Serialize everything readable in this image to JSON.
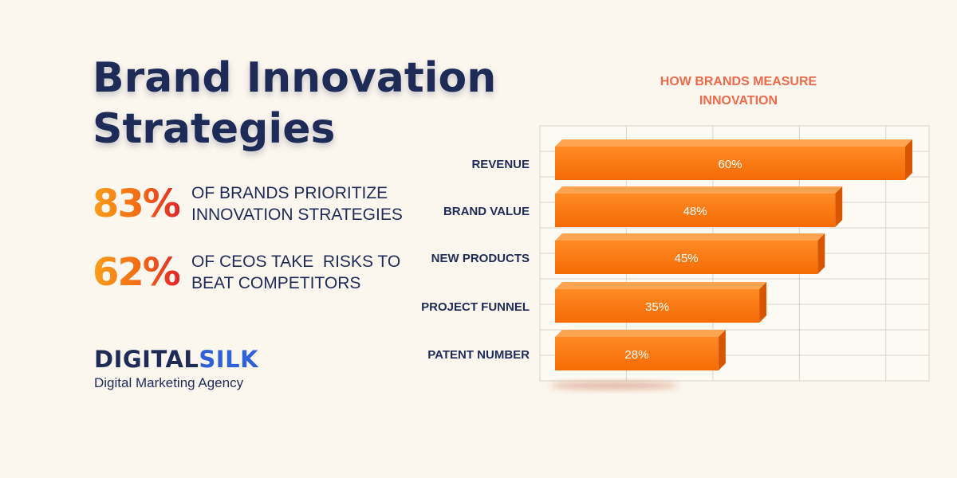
{
  "header": {
    "title_line_1": "Brand Innovation",
    "title_line_2": "Strategies"
  },
  "stats": [
    {
      "value": "83%",
      "text_line_1": "OF BRANDS PRIORITIZE",
      "text_line_2": "INNOVATION STRATEGIES"
    },
    {
      "value": "62%",
      "text_line_1": "OF CEOS TAKE  RISKS TO",
      "text_line_2": "BEAT COMPETITORS"
    }
  ],
  "brand": {
    "logo_part_1": "DIGITAL",
    "logo_part_2": "SILK",
    "tagline": "Digital Marketing Agency"
  },
  "colors": {
    "background": "#fbf6ee",
    "navy": "#1f2b57",
    "chart_title": "#ee6a4a",
    "bar": "#ff7a0f"
  },
  "chart_data": {
    "type": "bar",
    "orientation": "horizontal",
    "title_line_1": "HOW BRANDS MEASURE",
    "title_line_2": "INNOVATION",
    "categories": [
      "REVENUE",
      "BRAND VALUE",
      "NEW PRODUCTS",
      "PROJECT FUNNEL",
      "PATENT NUMBER"
    ],
    "values": [
      60,
      48,
      45,
      35,
      28
    ],
    "value_labels": [
      "60%",
      "48%",
      "45%",
      "35%",
      "28%"
    ],
    "unit": "%",
    "grid": true,
    "style": "3d"
  }
}
